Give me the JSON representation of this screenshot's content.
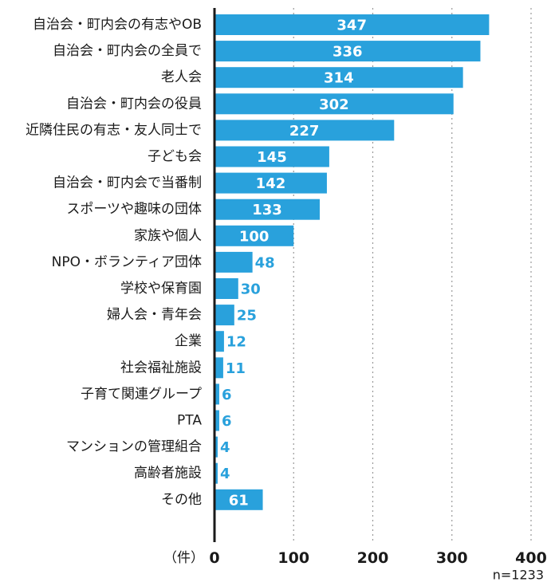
{
  "chart_data": {
    "type": "bar",
    "orientation": "horizontal",
    "categories": [
      "自治会・町内会の有志やOB",
      "自治会・町内会の全員で",
      "老人会",
      "自治会・町内会の役員",
      "近隣住民の有志・友人同士で",
      "子ども会",
      "自治会・町内会で当番制",
      "スポーツや趣味の団体",
      "家族や個人",
      "NPO・ボランティア団体",
      "学校や保育園",
      "婦人会・青年会",
      "企業",
      "社会福祉施設",
      "子育て関連グループ",
      "PTA",
      "マンションの管理組合",
      "高齢者施設",
      "その他"
    ],
    "values": [
      347,
      336,
      314,
      302,
      227,
      145,
      142,
      133,
      100,
      48,
      30,
      25,
      12,
      11,
      6,
      6,
      4,
      4,
      61
    ],
    "xlim": [
      0,
      400
    ],
    "xticks": [
      "0",
      "100",
      "200",
      "300",
      "400"
    ],
    "xlabel": "（件）",
    "note": "n=1233",
    "grid": "vertical dotted",
    "colors": {
      "bar": "#29a1dc",
      "label_inside": "#ffffff",
      "label_outside": "#29a1dc",
      "axis": "#1a1a1a",
      "grid": "#999999"
    }
  }
}
